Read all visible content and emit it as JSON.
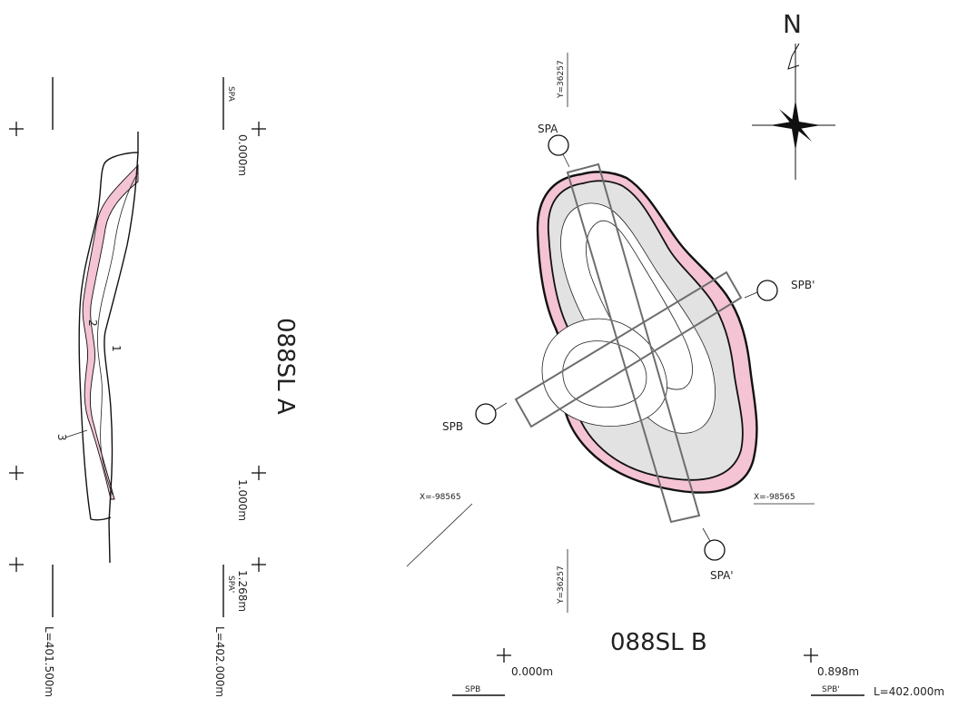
{
  "section_a": {
    "title": "088SL A",
    "start_label": "SPA",
    "end_label": "SPA'",
    "dist_start": "0.000m",
    "dist_mid": "1.000m",
    "dist_end": "1.268m",
    "level_left": "L=401.500m",
    "level_right": "L=402.000m",
    "layers": [
      "1",
      "2",
      "3"
    ]
  },
  "section_b": {
    "title": "088SL B",
    "start_label": "SPB",
    "end_label": "SPB'",
    "dist_start": "0.000m",
    "dist_end": "0.898m",
    "level": "L=402.000m"
  },
  "plan": {
    "north": "N",
    "grid_y_top": "Y=36257",
    "grid_y_bottom": "Y=36257",
    "grid_x_left": "X=-98565",
    "grid_x_right": "X=-98565",
    "markers": [
      "SPA",
      "SPA'",
      "SPB",
      "SPB'"
    ]
  },
  "colors": {
    "pink_layer": "#f4c3d4",
    "gray_fill": "#e2e2e2",
    "line": "#111111",
    "box": "#6e6e6e"
  }
}
